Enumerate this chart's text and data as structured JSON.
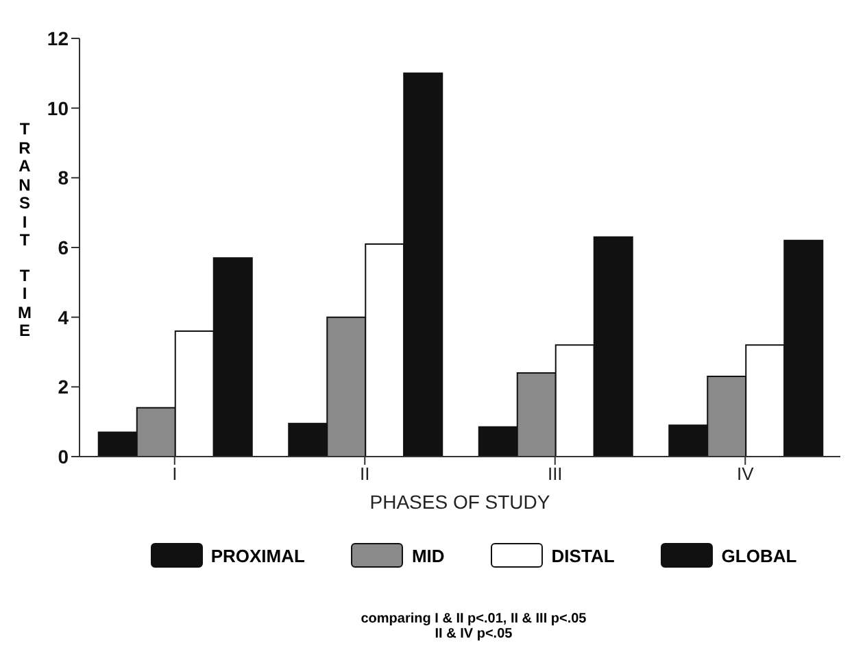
{
  "chart_data": {
    "type": "bar",
    "xlabel": "PHASES OF STUDY",
    "ylabel": "TRANSIT TIME",
    "categories": [
      "I",
      "II",
      "III",
      "IV"
    ],
    "series": [
      {
        "name": "PROXIMAL",
        "color": "#111111",
        "values": [
          0.7,
          0.95,
          0.85,
          0.9
        ]
      },
      {
        "name": "MID",
        "color": "#8a8a8a",
        "values": [
          1.4,
          4.0,
          2.4,
          2.3
        ]
      },
      {
        "name": "DISTAL",
        "color": "#ffffff",
        "values": [
          3.6,
          6.1,
          3.2,
          3.2
        ]
      },
      {
        "name": "GLOBAL",
        "color": "#111111",
        "values": [
          5.7,
          11.0,
          6.3,
          6.2
        ]
      }
    ],
    "ylim": [
      0,
      12
    ],
    "yticks": [
      0,
      2,
      4,
      6,
      8,
      10,
      12
    ],
    "legend": "bottom",
    "annotations": [
      "comparing I & II p<.01, II & III p<.05",
      "II & IV p<.05"
    ]
  }
}
